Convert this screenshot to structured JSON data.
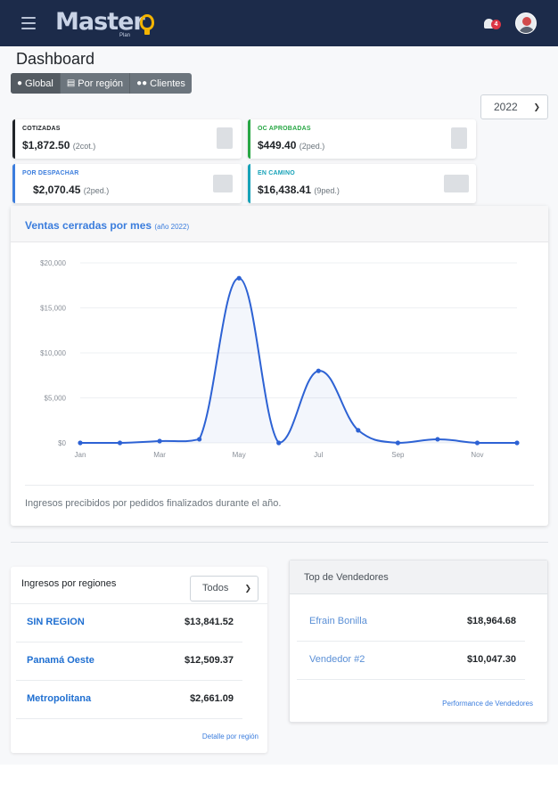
{
  "app": {
    "logo_text": "Master",
    "logo_sub": "Plan",
    "notifications_count": "4"
  },
  "page": {
    "title": "Dashboard"
  },
  "tabs": [
    {
      "label": "Global",
      "icon": "globe-icon",
      "active": true
    },
    {
      "label": "Por región",
      "icon": "table-icon",
      "active": false
    },
    {
      "label": "Clientes",
      "icon": "users-icon",
      "active": false
    }
  ],
  "year_select": {
    "value": "2022"
  },
  "stats": [
    {
      "label": "COTIZADAS",
      "value": "$1,872.50",
      "sub": "(2cot.)",
      "color": "#212529",
      "icon": "clipboard-icon"
    },
    {
      "label": "OC APROBADAS",
      "value": "$449.40",
      "sub": "(2ped.)",
      "color": "#28a745",
      "icon": "clipboard-check-icon"
    },
    {
      "label": "POR DESPACHAR",
      "value": "$2,070.45",
      "sub": "(2ped.)",
      "color": "#3b7ddd",
      "icon": "box-icon"
    },
    {
      "label": "EN CAMINO",
      "value": "$16,438.41",
      "sub": "(9ped.)",
      "color": "#17a2b8",
      "icon": "truck-icon"
    }
  ],
  "chart_card": {
    "title": "Ventas cerradas por mes",
    "title_sub": "(año 2022)",
    "footer": "Ingresos precibidos por pedidos finalizados durante el año."
  },
  "chart_data": {
    "type": "area",
    "x": [
      "Jan",
      "Feb",
      "Mar",
      "Apr",
      "May",
      "Jun",
      "Jul",
      "Aug",
      "Sep",
      "Oct",
      "Nov",
      "Dec"
    ],
    "tick_labels": [
      "Jan",
      "Mar",
      "May",
      "Jul",
      "Sep",
      "Nov"
    ],
    "series": [
      {
        "values": [
          0,
          0,
          200,
          400,
          18300,
          0,
          8000,
          1400,
          0,
          400,
          0,
          0
        ]
      }
    ],
    "ylim": [
      0,
      20000
    ],
    "yticks": [
      "$0",
      "$5,000",
      "$10,000",
      "$15,000",
      "$20,000"
    ],
    "grid": true,
    "color": "#2d62d4"
  },
  "regions": {
    "title": "Ingresos por regiones",
    "select_value": "Todos",
    "rows": [
      {
        "name": "SIN REGION",
        "value": "$13,841.52"
      },
      {
        "name": "Panamá Oeste",
        "value": "$12,509.37"
      },
      {
        "name": "Metropolitana",
        "value": "$2,661.09"
      }
    ],
    "link": "Detalle por región"
  },
  "sellers": {
    "title": "Top de Vendedores",
    "rows": [
      {
        "name": "Efrain Bonilla",
        "value": "$18,964.68"
      },
      {
        "name": "Vendedor #2",
        "value": "$10,047.30"
      }
    ],
    "link": "Performance de Vendedores"
  }
}
